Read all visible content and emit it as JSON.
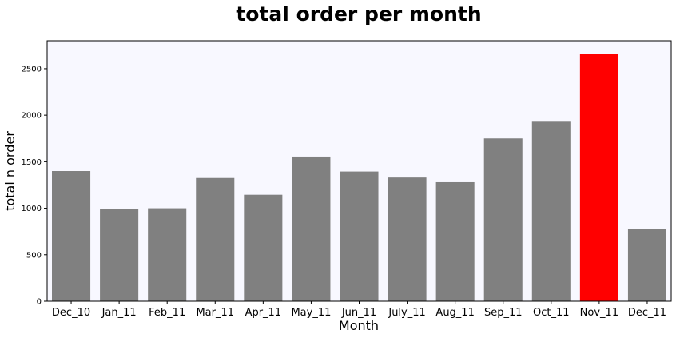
{
  "chart_data": {
    "type": "bar",
    "title": "total order per month",
    "xlabel": "Month",
    "ylabel": "total n order",
    "categories": [
      "Dec_10",
      "Jan_11",
      "Feb_11",
      "Mar_11",
      "Apr_11",
      "May_11",
      "Jun_11",
      "July_11",
      "Aug_11",
      "Sep_11",
      "Oct_11",
      "Nov_11",
      "Dec_11"
    ],
    "values": [
      1400,
      990,
      1000,
      1325,
      1145,
      1555,
      1395,
      1330,
      1280,
      1750,
      1930,
      2660,
      775
    ],
    "highlight_index": 11,
    "ylim": [
      0,
      2800
    ],
    "yticks": [
      0,
      500,
      1000,
      1500,
      2000,
      2500
    ],
    "grid": false,
    "colors": {
      "bar": "#808080",
      "highlight": "#ff0000",
      "plot_background": "#f8f8ff"
    }
  }
}
